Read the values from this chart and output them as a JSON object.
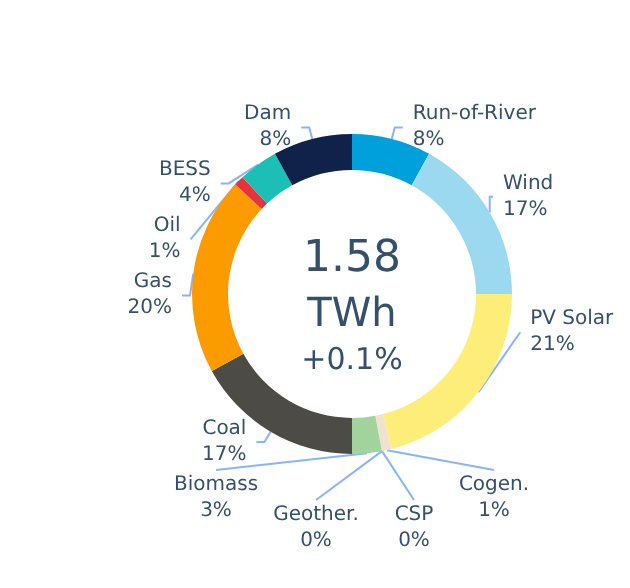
{
  "chart_data": {
    "type": "donut",
    "categories": [
      "Run-of-River",
      "Wind",
      "PV Solar",
      "Cogen.",
      "CSP",
      "Geother.",
      "Biomass",
      "Coal",
      "Gas",
      "Oil",
      "BESS",
      "Dam"
    ],
    "values": [
      8,
      17,
      21,
      1,
      0,
      0,
      3,
      17,
      20,
      1,
      4,
      8
    ],
    "value_labels": [
      "8%",
      "17%",
      "21%",
      "1%",
      "0%",
      "0%",
      "3%",
      "17%",
      "20%",
      "1%",
      "4%",
      "8%"
    ],
    "colors": [
      "#00a0dc",
      "#9ad9ef",
      "#fdee7a",
      "#efe3cf",
      "#e8a000",
      "#c8a86a",
      "#a3d39c",
      "#4d4b46",
      "#fb9b00",
      "#e8333c",
      "#1bbfb5",
      "#10214a"
    ],
    "annotations": [
      "1.58",
      "TWh",
      "+0.1%"
    ]
  }
}
